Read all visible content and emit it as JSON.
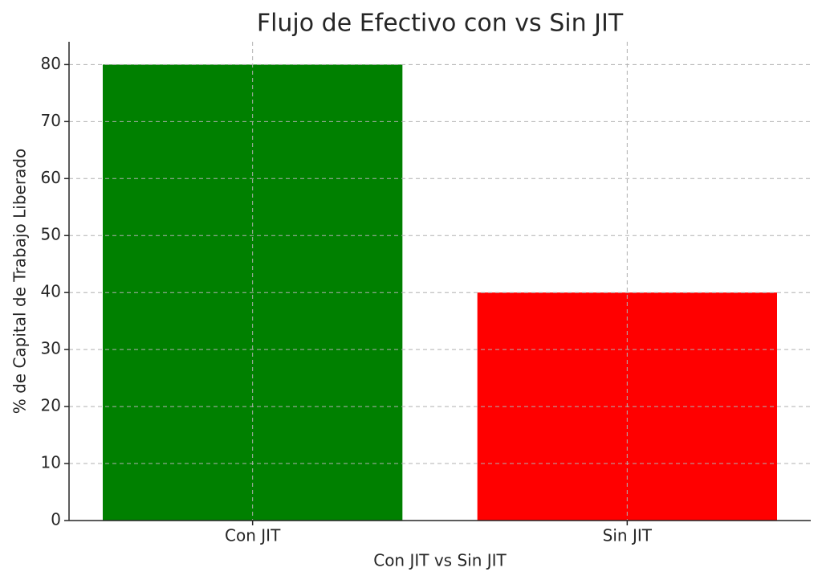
{
  "chart_data": {
    "type": "bar",
    "title": "Flujo de Efectivo con vs Sin JIT",
    "x_label": "Con JIT vs Sin JIT",
    "y_label": "% de Capital de Trabajo Liberado",
    "categories": [
      "Con JIT",
      "Sin JIT"
    ],
    "values": [
      80,
      40
    ],
    "colors": [
      "#008000",
      "#ff0000"
    ],
    "ylim": [
      0,
      84
    ],
    "yticks": [
      0,
      10,
      20,
      30,
      40,
      50,
      60,
      70,
      80
    ],
    "grid": true
  }
}
